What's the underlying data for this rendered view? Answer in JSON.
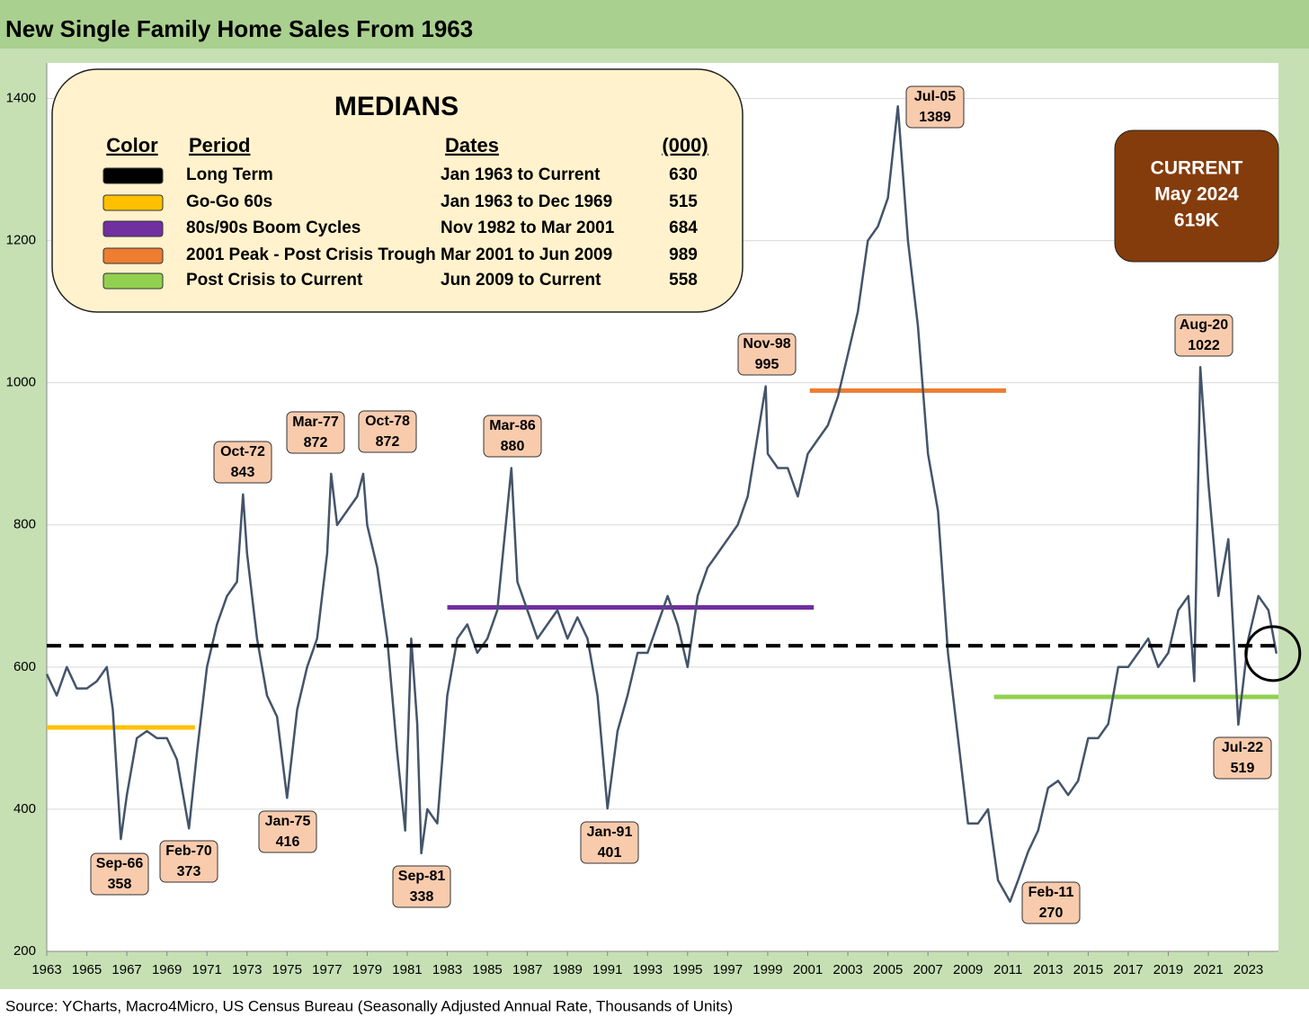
{
  "chart_data": {
    "type": "line",
    "title": "New Single Family Home Sales From 1963",
    "source": "Source: YCharts, Macro4Micro, US Census Bureau (Seasonally Adjusted Annual Rate, Thousands of Units)",
    "color": "#44546a",
    "x": [
      1963.0,
      1963.5,
      1964.0,
      1964.5,
      1965.0,
      1965.5,
      1966.0,
      1966.3,
      1966.7,
      1967.0,
      1967.5,
      1968.0,
      1968.5,
      1969.0,
      1969.5,
      1970.1,
      1970.5,
      1971.0,
      1971.5,
      1972.0,
      1972.5,
      1972.8,
      1973.0,
      1973.5,
      1974.0,
      1974.5,
      1975.0,
      1975.5,
      1976.0,
      1976.5,
      1977.0,
      1977.2,
      1977.5,
      1978.0,
      1978.5,
      1978.8,
      1979.0,
      1979.5,
      1980.0,
      1980.5,
      1980.9,
      1981.2,
      1981.5,
      1981.7,
      1982.0,
      1982.5,
      1983.0,
      1983.5,
      1984.0,
      1984.5,
      1985.0,
      1985.5,
      1986.2,
      1986.5,
      1987.0,
      1987.5,
      1988.0,
      1988.5,
      1989.0,
      1989.5,
      1990.0,
      1990.5,
      1991.0,
      1991.5,
      1992.0,
      1992.5,
      1993.0,
      1993.5,
      1994.0,
      1994.5,
      1995.0,
      1995.5,
      1996.0,
      1996.5,
      1997.0,
      1997.5,
      1998.0,
      1998.9,
      1999.0,
      1999.5,
      2000.0,
      2000.5,
      2001.0,
      2001.5,
      2002.0,
      2002.5,
      2003.0,
      2003.5,
      2004.0,
      2004.5,
      2005.0,
      2005.5,
      2006.0,
      2006.5,
      2007.0,
      2007.5,
      2008.0,
      2008.5,
      2009.0,
      2009.5,
      2010.0,
      2010.5,
      2011.1,
      2011.5,
      2012.0,
      2012.5,
      2013.0,
      2013.5,
      2014.0,
      2014.5,
      2015.0,
      2015.5,
      2016.0,
      2016.5,
      2017.0,
      2017.5,
      2018.0,
      2018.5,
      2019.0,
      2019.5,
      2020.0,
      2020.3,
      2020.6,
      2021.0,
      2021.5,
      2022.0,
      2022.5,
      2023.0,
      2023.5,
      2024.0,
      2024.4
    ],
    "values": [
      590,
      560,
      600,
      570,
      570,
      580,
      600,
      540,
      358,
      420,
      500,
      510,
      500,
      500,
      470,
      373,
      480,
      600,
      660,
      700,
      720,
      843,
      760,
      640,
      560,
      530,
      416,
      540,
      600,
      640,
      760,
      872,
      800,
      820,
      840,
      872,
      800,
      740,
      640,
      480,
      370,
      640,
      520,
      338,
      400,
      380,
      560,
      640,
      660,
      620,
      640,
      680,
      880,
      720,
      680,
      640,
      660,
      680,
      640,
      670,
      640,
      560,
      401,
      510,
      560,
      620,
      620,
      660,
      700,
      660,
      600,
      700,
      740,
      760,
      780,
      800,
      840,
      995,
      900,
      880,
      880,
      840,
      900,
      920,
      940,
      980,
      1040,
      1100,
      1200,
      1220,
      1260,
      1389,
      1200,
      1080,
      900,
      820,
      620,
      500,
      380,
      380,
      400,
      300,
      270,
      300,
      340,
      370,
      430,
      440,
      420,
      440,
      500,
      500,
      520,
      600,
      600,
      620,
      640,
      600,
      620,
      680,
      700,
      580,
      1022,
      860,
      700,
      780,
      519,
      640,
      700,
      680,
      619
    ],
    "xlim": [
      1963,
      2024.5
    ],
    "ylim": [
      200,
      1450
    ],
    "xticks": [
      1963,
      1965,
      1967,
      1969,
      1971,
      1973,
      1975,
      1977,
      1979,
      1981,
      1983,
      1985,
      1987,
      1989,
      1991,
      1993,
      1995,
      1997,
      1999,
      2001,
      2003,
      2005,
      2007,
      2009,
      2011,
      2013,
      2015,
      2017,
      2019,
      2021,
      2023
    ],
    "yticks": [
      200,
      400,
      600,
      800,
      1000,
      1200,
      1400
    ],
    "grid": true,
    "annotations": [
      {
        "label": "Sep-66",
        "value": 358
      },
      {
        "label": "Feb-70",
        "value": 373
      },
      {
        "label": "Oct-72",
        "value": 843
      },
      {
        "label": "Jan-75",
        "value": 416
      },
      {
        "label": "Mar-77",
        "value": 872
      },
      {
        "label": "Oct-78",
        "value": 872
      },
      {
        "label": "Sep-81",
        "value": 338
      },
      {
        "label": "Mar-86",
        "value": 880
      },
      {
        "label": "Jan-91",
        "value": 401
      },
      {
        "label": "Nov-98",
        "value": 995
      },
      {
        "label": "Jul-05",
        "value": 1389
      },
      {
        "label": "Feb-11",
        "value": 270
      },
      {
        "label": "Aug-20",
        "value": 1022
      },
      {
        "label": "Jul-22",
        "value": 519
      }
    ],
    "medians_title": "MEDIANS",
    "medians_headers": [
      "Color",
      "Period",
      "Dates",
      "(000)"
    ],
    "medians": [
      {
        "period": "Long Term",
        "dates": "Jan 1963 to Current",
        "value": 630,
        "color": "#000000"
      },
      {
        "period": "Go-Go 60s",
        "dates": "Jan 1963 to Dec 1969",
        "value": 515,
        "color": "#ffc000"
      },
      {
        "period": "80s/90s Boom Cycles",
        "dates": "Nov 1982 to Mar 2001",
        "value": 684,
        "color": "#7030a0"
      },
      {
        "period": "2001 Peak - Post Crisis Trough",
        "dates": "Mar 2001 to Jun 2009",
        "value": 989,
        "color": "#ed7d31"
      },
      {
        "period": "Post Crisis to Current",
        "dates": "Jun 2009 to Current",
        "value": 558,
        "color": "#92d050"
      }
    ],
    "current": [
      "CURRENT",
      "May 2024",
      "619K"
    ]
  }
}
